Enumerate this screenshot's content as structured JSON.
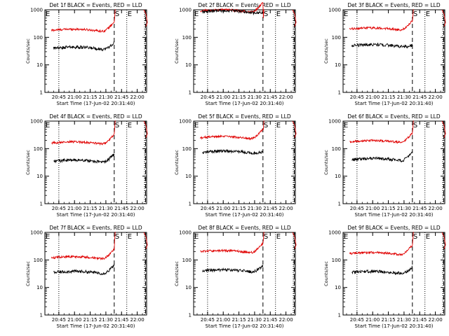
{
  "chart_data": [
    {
      "type": "line",
      "title": "Det 1f BLACK = Events, RED = LLD",
      "red": {
        "pre": 180,
        "peak": 1000
      },
      "black": {
        "pre": 40,
        "end": 70
      }
    },
    {
      "type": "line",
      "title": "Det 2f BLACK = Events, RED = LLD",
      "red": {
        "pre": 900,
        "peak": 1000
      },
      "black": {
        "pre": 850,
        "end": 950
      }
    },
    {
      "type": "line",
      "title": "Det 3f BLACK = Events, RED = LLD",
      "red": {
        "pre": 200,
        "peak": 1000
      },
      "black": {
        "pre": 50,
        "end": 60
      }
    },
    {
      "type": "line",
      "title": "Det 4f BLACK = Events, RED = LLD",
      "red": {
        "pre": 160,
        "peak": 1000
      },
      "black": {
        "pre": 35,
        "end": 70
      }
    },
    {
      "type": "line",
      "title": "Det 5f BLACK = Events, RED = LLD",
      "red": {
        "pre": 250,
        "peak": 1000
      },
      "black": {
        "pre": 75,
        "end": 90
      }
    },
    {
      "type": "line",
      "title": "Det 6f BLACK = Events, RED = LLD",
      "red": {
        "pre": 180,
        "peak": 1000
      },
      "black": {
        "pre": 40,
        "end": 80
      }
    },
    {
      "type": "line",
      "title": "Det 7f BLACK = Events, RED = LLD",
      "red": {
        "pre": 120,
        "peak": 1000
      },
      "black": {
        "pre": 35,
        "end": 70
      }
    },
    {
      "type": "line",
      "title": "Det 8f BLACK = Events, RED = LLD",
      "red": {
        "pre": 200,
        "peak": 1000
      },
      "black": {
        "pre": 40,
        "end": 70
      }
    },
    {
      "type": "line",
      "title": "Det 9f BLACK = Events, RED = LLD",
      "red": {
        "pre": 170,
        "peak": 1000
      },
      "black": {
        "pre": 35,
        "end": 60
      }
    }
  ],
  "shared": {
    "ylabel": "Counts/sec",
    "xlabel": "Start Time (17-Jun-02 20:31:40)",
    "yscale": "log",
    "ylim": [
      1,
      1000
    ],
    "xlim": [
      "20:31:40",
      "22:09:00"
    ],
    "yticks": [
      {
        "v": 1,
        "label": "1"
      },
      {
        "v": 10,
        "label": "10"
      },
      {
        "v": 100,
        "label": "100"
      },
      {
        "v": 1000,
        "label": "1000"
      }
    ],
    "xticks": [
      "20:45",
      "21:00",
      "21:15",
      "21:30",
      "21:45",
      "22:00"
    ],
    "markers": {
      "dotted": [
        "20:45",
        "21:50",
        "22:07"
      ],
      "dashed": [
        "21:38",
        "22:08"
      ],
      "letters": [
        {
          "t": "20:31:40",
          "c": "E"
        },
        {
          "t": "21:38",
          "c": "S"
        },
        {
          "t": "21:50",
          "c": "E"
        }
      ]
    },
    "series_colors": {
      "events": "#000000",
      "lld": "#e00000"
    },
    "red_start": "20:38",
    "black_start": "20:40",
    "series_end": "21:38"
  }
}
